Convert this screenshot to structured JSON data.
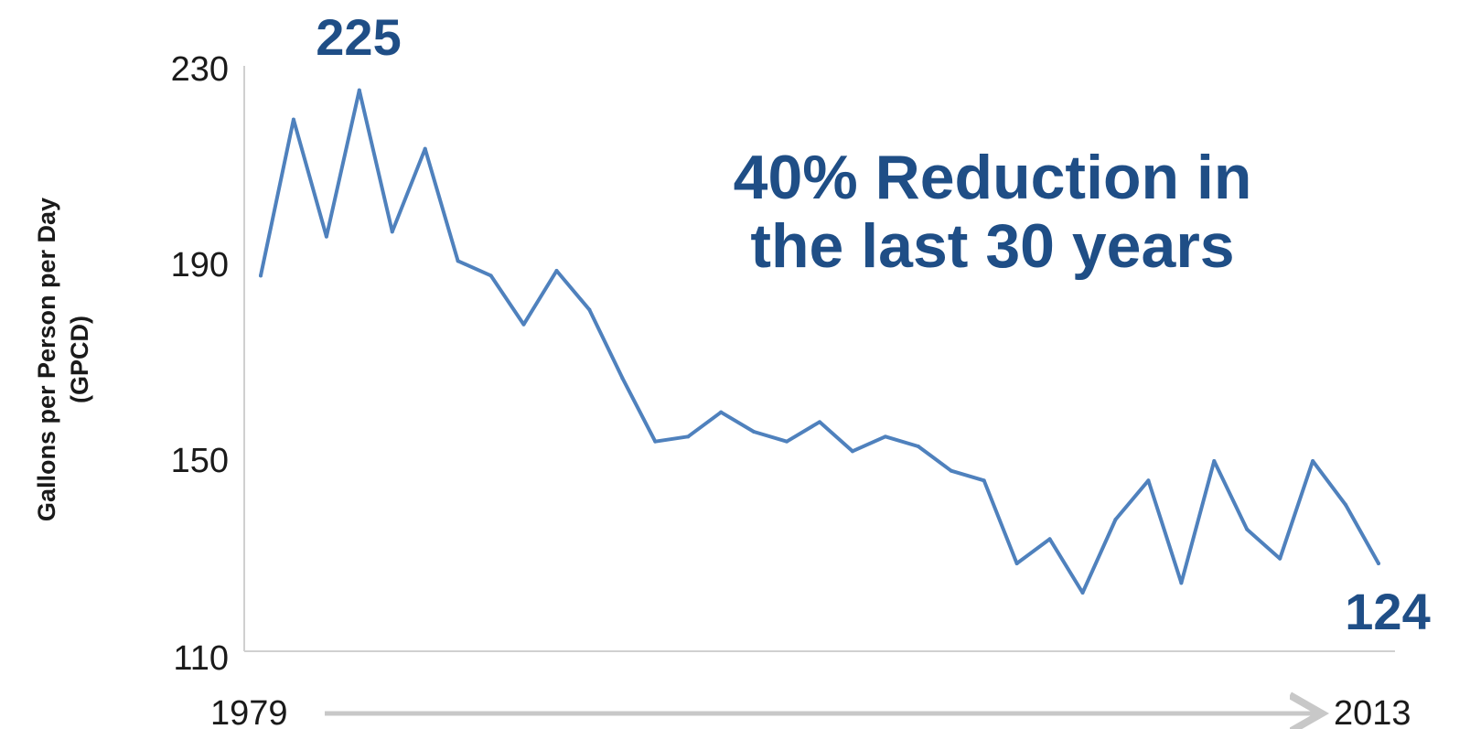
{
  "chart_data": {
    "type": "line",
    "x_start_label": "1979",
    "x_end_label": "2013",
    "ylabel": "Gallons per Person per Day (GPCD)",
    "ylabel_lines": [
      "Gallons per Person per Day",
      "(GPCD)"
    ],
    "yticks": [
      "230",
      "190",
      "150",
      "110"
    ],
    "ylim": [
      110,
      230
    ],
    "x": [
      1979,
      1980,
      1981,
      1982,
      1983,
      1984,
      1985,
      1986,
      1987,
      1988,
      1989,
      1990,
      1991,
      1992,
      1993,
      1994,
      1995,
      1996,
      1997,
      1998,
      1999,
      2000,
      2001,
      2002,
      2003,
      2004,
      2005,
      2006,
      2007,
      2008,
      2009,
      2010,
      2011,
      2012,
      2013
    ],
    "values": [
      187,
      219,
      195,
      225,
      196,
      213,
      190,
      187,
      177,
      188,
      180,
      166,
      153,
      154,
      159,
      155,
      153,
      157,
      151,
      154,
      152,
      147,
      145,
      128,
      133,
      122,
      137,
      145,
      124,
      149,
      135,
      129,
      149,
      140,
      128
    ],
    "line_color": "#4f81bd",
    "annotations": {
      "start_value": "225",
      "end_value": "124",
      "headline_line1": "40% Reduction in",
      "headline_line2": "the last 30 years"
    }
  }
}
